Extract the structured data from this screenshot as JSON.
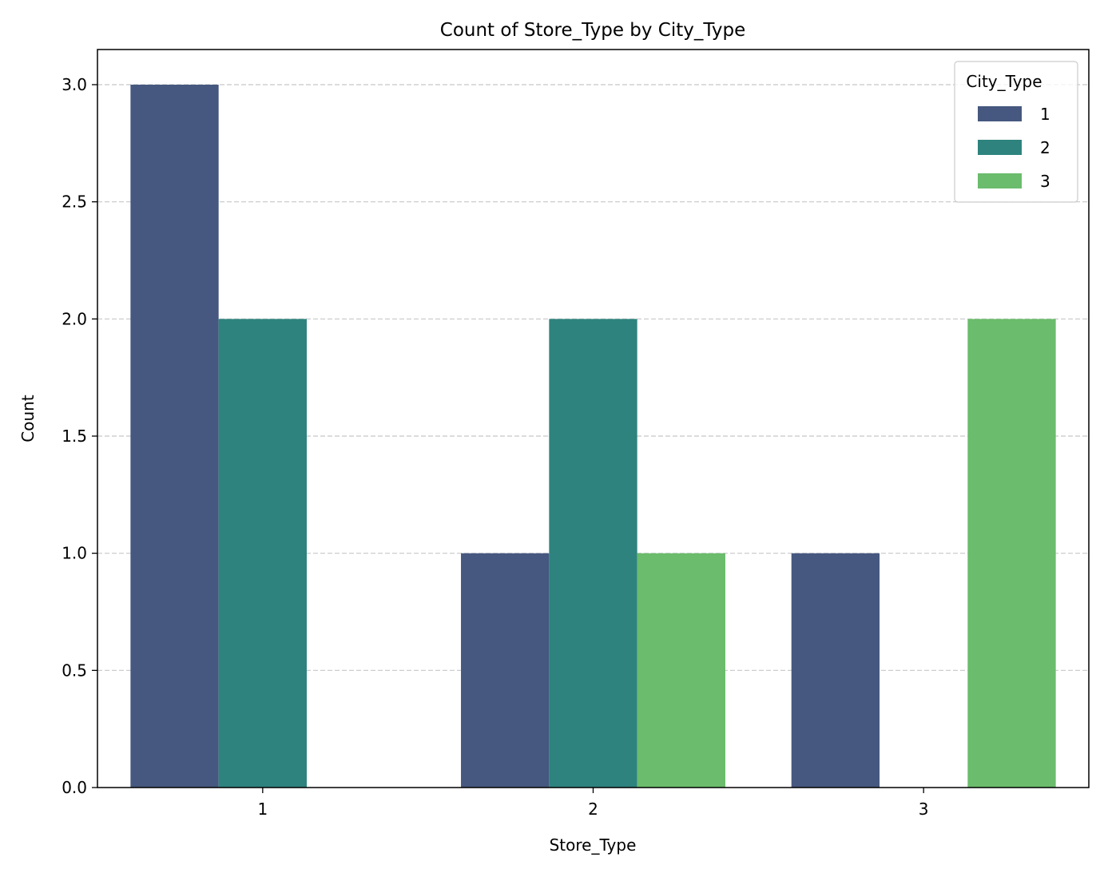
{
  "chart_data": {
    "type": "bar",
    "title": "Count of Store_Type by City_Type",
    "xlabel": "Store_Type",
    "ylabel": "Count",
    "categories": [
      "1",
      "2",
      "3"
    ],
    "ylim": [
      0,
      3.15
    ],
    "yticks": [
      "0.0",
      "0.5",
      "1.0",
      "1.5",
      "2.0",
      "2.5",
      "3.0"
    ],
    "ytick_values": [
      0,
      0.5,
      1.0,
      1.5,
      2.0,
      2.5,
      3.0
    ],
    "grid": "y-dashed",
    "legend": {
      "title": "City_Type",
      "placement": "top-right"
    },
    "series": [
      {
        "name": "1",
        "color": "#46587f",
        "values": [
          3,
          1,
          1
        ]
      },
      {
        "name": "2",
        "color": "#2e837e",
        "values": [
          2,
          2,
          0
        ]
      },
      {
        "name": "3",
        "color": "#6bbc6c",
        "values": [
          0,
          1,
          2
        ]
      }
    ]
  }
}
